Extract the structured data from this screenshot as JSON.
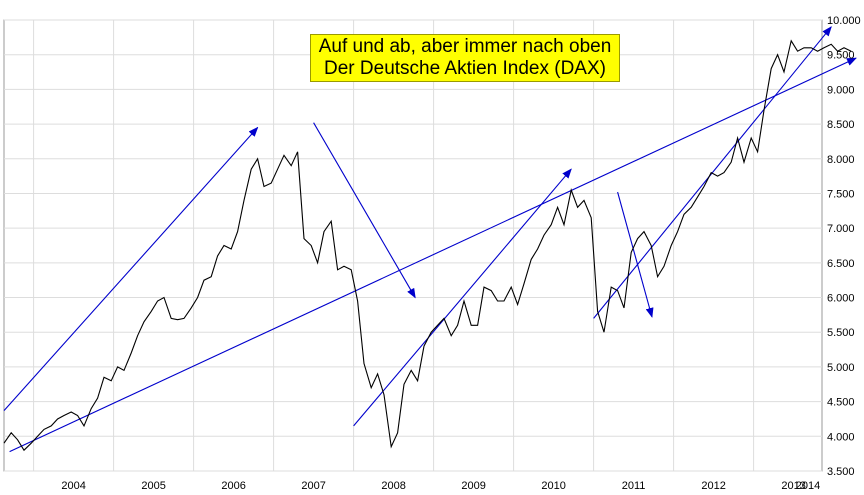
{
  "chart_data": {
    "type": "line",
    "title": "Auf und ab, aber immer nach oben",
    "subtitle": "Der Deutsche Aktien Index (DAX)",
    "xlabel": "",
    "ylabel": "",
    "x_ticks": [
      "2004",
      "2005",
      "2006",
      "2007",
      "2008",
      "2009",
      "2010",
      "2011",
      "2012",
      "2013",
      "2014"
    ],
    "y_ticks": [
      "3.500",
      "4.000",
      "4.500",
      "5.000",
      "5.500",
      "6.000",
      "6.500",
      "7.000",
      "7.500",
      "8.000",
      "8.500",
      "9.000",
      "9.500",
      "10.000"
    ],
    "ylim": [
      3500,
      10000
    ],
    "xlim": [
      2003.63,
      2014.3
    ],
    "grid": true,
    "line_color": "#000000",
    "annotation_color": "#0000cc",
    "title_bg": "#ffff00",
    "series": [
      {
        "x": [
          2003.63,
          2003.72,
          2003.8,
          2003.88,
          2003.97,
          2004.05,
          2004.13,
          2004.22,
          2004.3,
          2004.38,
          2004.47,
          2004.55,
          2004.63,
          2004.72,
          2004.8,
          2004.88,
          2004.97,
          2005.05,
          2005.13,
          2005.22,
          2005.3,
          2005.38,
          2005.47,
          2005.55,
          2005.63,
          2005.72,
          2005.8,
          2005.88,
          2005.97,
          2006.05,
          2006.13,
          2006.22,
          2006.3,
          2006.38,
          2006.47,
          2006.55,
          2006.63,
          2006.72,
          2006.8,
          2006.88,
          2006.97,
          2007.05,
          2007.13,
          2007.22,
          2007.3,
          2007.38,
          2007.47,
          2007.55,
          2007.63,
          2007.72,
          2007.8,
          2007.88,
          2007.97,
          2008.05,
          2008.13,
          2008.22,
          2008.3,
          2008.38,
          2008.47,
          2008.55,
          2008.63,
          2008.72,
          2008.8,
          2008.88,
          2008.97,
          2009.05,
          2009.13,
          2009.22,
          2009.3,
          2009.38,
          2009.47,
          2009.55,
          2009.63,
          2009.72,
          2009.8,
          2009.88,
          2009.97,
          2010.05,
          2010.13,
          2010.22,
          2010.3,
          2010.38,
          2010.47,
          2010.55,
          2010.63,
          2010.72,
          2010.8,
          2010.88,
          2010.97,
          2011.05,
          2011.13,
          2011.22,
          2011.3,
          2011.38,
          2011.47,
          2011.55,
          2011.63,
          2011.72,
          2011.8,
          2011.88,
          2011.97,
          2012.05,
          2012.13,
          2012.22,
          2012.3,
          2012.38,
          2012.47,
          2012.55,
          2012.63,
          2012.72,
          2012.8,
          2012.88,
          2012.97,
          2013.05,
          2013.13,
          2013.22,
          2013.3,
          2013.38,
          2013.47,
          2013.55,
          2013.63,
          2013.72,
          2013.8,
          2013.88,
          2013.97,
          2014.05,
          2014.13,
          2014.22
        ],
        "values": [
          3900,
          4050,
          3950,
          3800,
          3900,
          4000,
          4100,
          4150,
          4250,
          4300,
          4350,
          4300,
          4150,
          4400,
          4550,
          4850,
          4800,
          5000,
          4950,
          5200,
          5450,
          5650,
          5800,
          5950,
          6000,
          5700,
          5680,
          5700,
          5850,
          6000,
          6250,
          6300,
          6600,
          6750,
          6700,
          6950,
          7400,
          7850,
          8000,
          7600,
          7650,
          7850,
          8050,
          7900,
          8100,
          6850,
          6750,
          6500,
          6950,
          7100,
          6400,
          6450,
          6400,
          5950,
          5050,
          4700,
          4900,
          4600,
          3850,
          4050,
          4750,
          4950,
          4800,
          5300,
          5500,
          5600,
          5700,
          5450,
          5600,
          5950,
          5600,
          5600,
          6150,
          6100,
          5950,
          5950,
          6150,
          5900,
          6200,
          6550,
          6700,
          6900,
          7050,
          7300,
          7050,
          7550,
          7300,
          7400,
          7150,
          5800,
          5500,
          6150,
          6100,
          5850,
          6650,
          6850,
          6950,
          6750,
          6300,
          6450,
          6750,
          6950,
          7200,
          7300,
          7450,
          7600,
          7800,
          7750,
          7800,
          7950,
          8300,
          7950,
          8300,
          8100,
          8700,
          9300,
          9500,
          9250,
          9700,
          9550,
          9600,
          9600,
          9550,
          9600,
          9650,
          9550,
          9600,
          9550
        ]
      }
    ],
    "trend_lines": [
      {
        "x": [
          2003.63,
          2006.8
        ],
        "values": [
          4370,
          8450
        ],
        "arrow_end": true
      },
      {
        "x": [
          2003.7,
          2014.28
        ],
        "values": [
          3780,
          9450
        ],
        "arrow_end": true
      },
      {
        "x": [
          2007.5,
          2008.77
        ],
        "values": [
          8520,
          6000
        ],
        "arrow_end": true
      },
      {
        "x": [
          2008.0,
          2010.72
        ],
        "values": [
          4150,
          7850
        ],
        "arrow_end": true
      },
      {
        "x": [
          2011.3,
          2011.73
        ],
        "values": [
          7520,
          5720
        ],
        "arrow_end": true
      },
      {
        "x": [
          2011.0,
          2013.97
        ],
        "values": [
          5700,
          9900
        ],
        "arrow_end": true
      }
    ]
  }
}
